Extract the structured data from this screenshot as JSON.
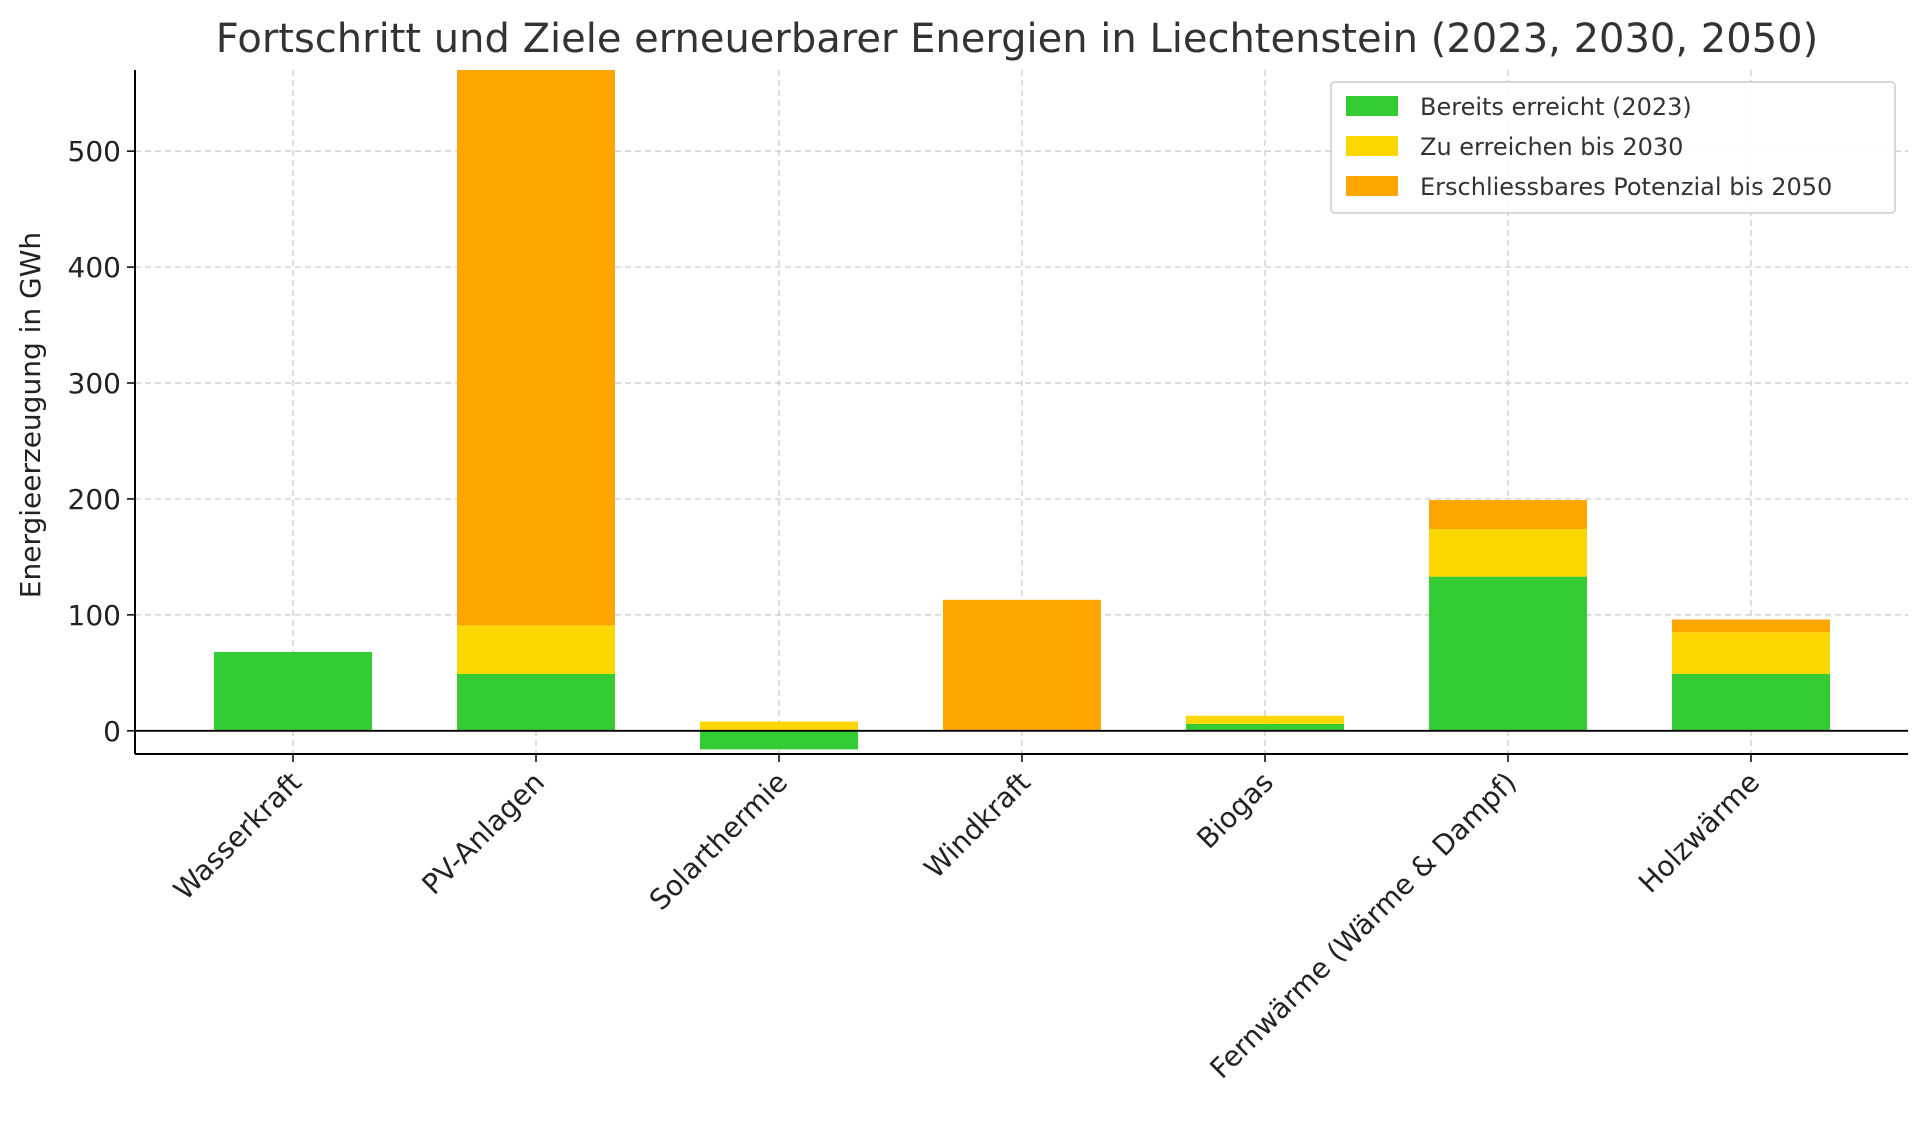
{
  "chart_data": {
    "type": "bar",
    "stacked": true,
    "title": "Fortschritt und Ziele erneuerbarer Energien in Liechtenstein (2023, 2030, 2050)",
    "xlabel": "",
    "ylabel": "Energieerzeugung in GWh",
    "ylim": [
      -20,
      570
    ],
    "yticks": [
      0,
      100,
      200,
      300,
      400,
      500
    ],
    "grid": true,
    "legend_position": "top-right",
    "categories": [
      "Wasserkraft",
      "PV-Anlagen",
      "Solarthermie",
      "Windkraft",
      "Biogas",
      "Fernwärme (Wärme & Dampf)",
      "Holzwärme"
    ],
    "series": [
      {
        "name": "Bereits erreicht (2023)",
        "color": "#33cc33",
        "values": [
          68,
          49,
          -16,
          0,
          6,
          133,
          49
        ]
      },
      {
        "name": "Zu erreichen bis 2030",
        "color": "#ffd700",
        "values": [
          0,
          42,
          8,
          0,
          7,
          41,
          36
        ]
      },
      {
        "name": "Erschliessbares Potenzial bis 2050",
        "color": "#ffa500",
        "values": [
          0,
          479,
          0,
          113,
          0,
          25,
          11
        ]
      }
    ]
  }
}
